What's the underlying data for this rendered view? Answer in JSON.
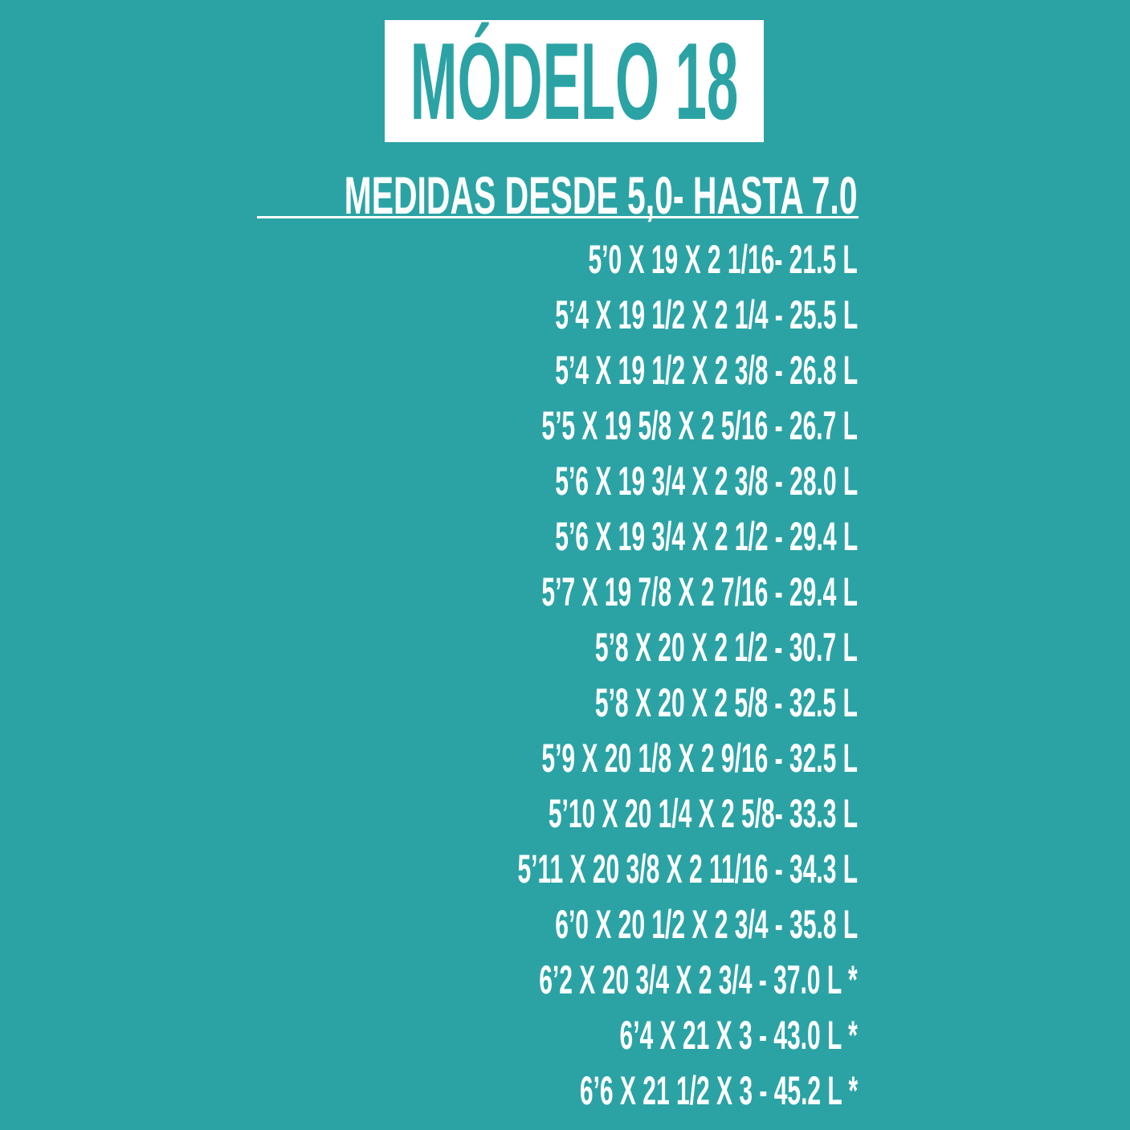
{
  "title": "MÓDELO 18",
  "heading": "MEDIDAS DESDE 5,0- HASTA 7.0",
  "colors": {
    "background": "#2ba3a5",
    "text": "#ffffff",
    "title_box": "#ffffff"
  },
  "sizes": [
    "5’0 X 19 X 2 1/16- 21.5 L",
    "5’4 X 19 1/2 X 2 1/4 - 25.5  L",
    "5’4 X 19 1/2 X 2 3/8 - 26.8 L",
    "5’5 X 19 5/8 X 2 5/16 - 26.7 L",
    "5’6 X 19 3/4 X 2 3/8 - 28.0 L",
    "5’6 X 19 3/4 X 2 1/2 - 29.4 L",
    "5’7 X 19 7/8 X 2 7/16 - 29.4 L",
    "5’8 X 20 X 2 1/2 - 30.7 L",
    "5’8 X 20 X 2 5/8 - 32.5 L",
    "5’9 X 20 1/8 X 2 9/16 - 32.5 L",
    "5’10 X 20 1/4 X 2 5/8- 33.3 L",
    "5’11 X 20 3/8 X 2 11/16 - 34.3 L",
    "6’0 X 20 1/2 X 2 3/4 - 35.8 L",
    "6’2 X 20 3/4 X 2 3/4 - 37.0 L *",
    "6’4 X 21 X 3 - 43.0 L *",
    "6’6 X 21 1/2 X 3 - 45.2 L *"
  ]
}
